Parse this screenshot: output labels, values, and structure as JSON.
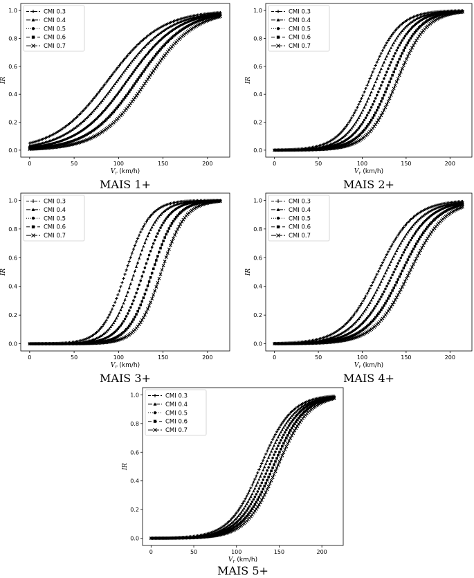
{
  "figure": {
    "legend_position": "upper-left",
    "line_color": "#000000"
  },
  "chart_data": [
    {
      "type": "line",
      "caption": "MAIS 1+",
      "xlabel": "V_r (km/h)",
      "ylabel": "IR",
      "xlim": [
        -10,
        225
      ],
      "ylim": [
        -0.05,
        1.05
      ],
      "xticks": [
        "0",
        "50",
        "100",
        "150",
        "200"
      ],
      "yticks": [
        "0.0",
        "0.2",
        "0.4",
        "0.6",
        "0.8",
        "1.0"
      ],
      "grid": false,
      "x_range": [
        0,
        215
      ],
      "series": [
        {
          "name": "CMI 0.3",
          "marker": "plus",
          "dash": "4,2",
          "midpoint": 88,
          "slope": 0.0335
        },
        {
          "name": "CMI 0.4",
          "marker": "triangle",
          "dash": "6,2,1,2",
          "midpoint": 99,
          "slope": 0.0345
        },
        {
          "name": "CMI 0.5",
          "marker": "circle",
          "dash": "1,2",
          "midpoint": 110,
          "slope": 0.0355
        },
        {
          "name": "CMI 0.6",
          "marker": "square",
          "dash": "5,3",
          "midpoint": 121,
          "slope": 0.0365
        },
        {
          "name": "CMI 0.7",
          "marker": "x",
          "dash": "7,2",
          "midpoint": 132,
          "slope": 0.0375
        }
      ]
    },
    {
      "type": "line",
      "caption": "MAIS 2+",
      "xlabel": "V_r (km/h)",
      "ylabel": "IR",
      "xlim": [
        -10,
        225
      ],
      "ylim": [
        -0.05,
        1.05
      ],
      "xticks": [
        "0",
        "50",
        "100",
        "150",
        "200"
      ],
      "yticks": [
        "0.0",
        "0.2",
        "0.4",
        "0.6",
        "0.8",
        "1.0"
      ],
      "grid": false,
      "x_range": [
        0,
        215
      ],
      "series": [
        {
          "name": "CMI 0.3",
          "marker": "plus",
          "dash": "4,2",
          "midpoint": 108,
          "slope": 0.06
        },
        {
          "name": "CMI 0.4",
          "marker": "triangle",
          "dash": "6,2,1,2",
          "midpoint": 116,
          "slope": 0.06
        },
        {
          "name": "CMI 0.5",
          "marker": "circle",
          "dash": "1,2",
          "midpoint": 124,
          "slope": 0.06
        },
        {
          "name": "CMI 0.6",
          "marker": "square",
          "dash": "5,3",
          "midpoint": 132,
          "slope": 0.06
        },
        {
          "name": "CMI 0.7",
          "marker": "x",
          "dash": "7,2",
          "midpoint": 140,
          "slope": 0.06
        }
      ]
    },
    {
      "type": "line",
      "caption": "MAIS 3+",
      "xlabel": "V_r (km/h)",
      "ylabel": "IR",
      "xlim": [
        -10,
        225
      ],
      "ylim": [
        -0.05,
        1.05
      ],
      "xticks": [
        "0",
        "50",
        "100",
        "150",
        "200"
      ],
      "yticks": [
        "0.0",
        "0.2",
        "0.4",
        "0.6",
        "0.8",
        "1.0"
      ],
      "grid": false,
      "x_range": [
        0,
        215
      ],
      "series": [
        {
          "name": "CMI 0.3",
          "marker": "plus",
          "dash": "4,2",
          "midpoint": 108,
          "slope": 0.075
        },
        {
          "name": "CMI 0.4",
          "marker": "triangle",
          "dash": "6,2,1,2",
          "midpoint": 118,
          "slope": 0.075
        },
        {
          "name": "CMI 0.5",
          "marker": "circle",
          "dash": "1,2",
          "midpoint": 128,
          "slope": 0.075
        },
        {
          "name": "CMI 0.6",
          "marker": "square",
          "dash": "5,3",
          "midpoint": 138,
          "slope": 0.075
        },
        {
          "name": "CMI 0.7",
          "marker": "x",
          "dash": "7,2",
          "midpoint": 148,
          "slope": 0.075
        }
      ]
    },
    {
      "type": "line",
      "caption": "MAIS 4+",
      "xlabel": "V_r (km/h)",
      "ylabel": "IR",
      "xlim": [
        -10,
        225
      ],
      "ylim": [
        -0.05,
        1.05
      ],
      "xticks": [
        "0",
        "50",
        "100",
        "150",
        "200"
      ],
      "yticks": [
        "0.0",
        "0.2",
        "0.4",
        "0.6",
        "0.8",
        "1.0"
      ],
      "grid": false,
      "x_range": [
        0,
        215
      ],
      "series": [
        {
          "name": "CMI 0.3",
          "marker": "plus",
          "dash": "4,2",
          "midpoint": 118,
          "slope": 0.05
        },
        {
          "name": "CMI 0.4",
          "marker": "triangle",
          "dash": "6,2,1,2",
          "midpoint": 127,
          "slope": 0.05
        },
        {
          "name": "CMI 0.5",
          "marker": "circle",
          "dash": "1,2",
          "midpoint": 136,
          "slope": 0.05
        },
        {
          "name": "CMI 0.6",
          "marker": "square",
          "dash": "5,3",
          "midpoint": 145,
          "slope": 0.05
        },
        {
          "name": "CMI 0.7",
          "marker": "x",
          "dash": "7,2",
          "midpoint": 154,
          "slope": 0.05
        }
      ]
    },
    {
      "type": "line",
      "caption": "MAIS 5+",
      "xlabel": "V_r (km/h)",
      "ylabel": "IR",
      "xlim": [
        -10,
        225
      ],
      "ylim": [
        -0.05,
        1.05
      ],
      "xticks": [
        "0",
        "50",
        "100",
        "150",
        "200"
      ],
      "yticks": [
        "0.0",
        "0.2",
        "0.4",
        "0.6",
        "0.8",
        "1.0"
      ],
      "grid": false,
      "x_range": [
        0,
        215
      ],
      "series": [
        {
          "name": "CMI 0.3",
          "marker": "plus",
          "dash": "4,2",
          "midpoint": 128,
          "slope": 0.055
        },
        {
          "name": "CMI 0.4",
          "marker": "triangle",
          "dash": "6,2,1,2",
          "midpoint": 133,
          "slope": 0.055
        },
        {
          "name": "CMI 0.5",
          "marker": "circle",
          "dash": "1,2",
          "midpoint": 138,
          "slope": 0.055
        },
        {
          "name": "CMI 0.6",
          "marker": "square",
          "dash": "5,3",
          "midpoint": 143,
          "slope": 0.055
        },
        {
          "name": "CMI 0.7",
          "marker": "x",
          "dash": "7,2",
          "midpoint": 148,
          "slope": 0.055
        }
      ]
    }
  ]
}
